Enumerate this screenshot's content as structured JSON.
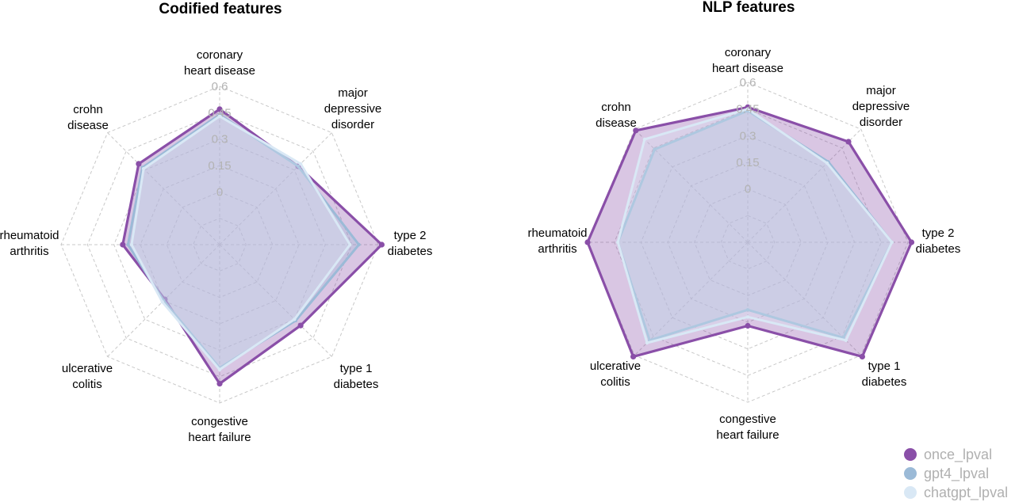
{
  "chart_data": [
    {
      "type": "radar",
      "title": "Codified features",
      "categories": [
        "coronary\nheart disease",
        "major\ndepressive\ndisorder",
        "type 2\ndiabetes",
        "type 1\ndiabetes",
        "congestive\nheart failure",
        "ulcerative\ncolitis",
        "rheumatoid\narthritis",
        "crohn\ndisease"
      ],
      "tick_labels": [
        "0",
        "0.15",
        "0.3",
        "0.45",
        "0.6"
      ],
      "rlim": [
        -0.3,
        0.6
      ],
      "grid": true,
      "series": [
        {
          "name": "once_lpval",
          "values": [
            0.47,
            0.33,
            0.62,
            0.35,
            0.49,
            0.14,
            0.25,
            0.35
          ]
        },
        {
          "name": "gpt4_lpval",
          "values": [
            0.44,
            0.33,
            0.49,
            0.31,
            0.4,
            0.15,
            0.22,
            0.32
          ]
        },
        {
          "name": "chatgpt_lpval",
          "values": [
            0.43,
            0.35,
            0.44,
            0.3,
            0.41,
            0.16,
            0.2,
            0.31
          ]
        }
      ]
    },
    {
      "type": "radar",
      "title": "NLP features",
      "categories": [
        "coronary\nheart disease",
        "major\ndepressive\ndisorder",
        "type 2\ndiabetes",
        "type 1\ndiabetes",
        "congestive\nheart failure",
        "ulcerative\ncolitis",
        "rheumatoid\narthritis",
        "crohn\ndisease"
      ],
      "tick_labels": [
        "0",
        "0.15",
        "0.3",
        "0.45",
        "0.6"
      ],
      "rlim": [
        -0.3,
        0.6
      ],
      "grid": true,
      "series": [
        {
          "name": "once_lpval",
          "values": [
            0.46,
            0.5,
            0.62,
            0.61,
            0.17,
            0.61,
            0.6,
            0.59
          ]
        },
        {
          "name": "gpt4_lpval",
          "values": [
            0.44,
            0.34,
            0.51,
            0.46,
            0.08,
            0.48,
            0.43,
            0.44
          ]
        },
        {
          "name": "chatgpt_lpval",
          "values": [
            0.45,
            0.33,
            0.51,
            0.48,
            0.12,
            0.5,
            0.43,
            0.52
          ]
        }
      ]
    }
  ],
  "legend": {
    "position": "bottom-right",
    "items": [
      {
        "label": "once_lpval",
        "color": "#8a4fa8"
      },
      {
        "label": "gpt4_lpval",
        "color": "#9bbad7"
      },
      {
        "label": "chatgpt_lpval",
        "color": "#d9e8f5"
      }
    ]
  },
  "colors": {
    "once_lpval": "#8a4fa8",
    "gpt4_lpval": "#9bbad7",
    "chatgpt_lpval": "#d9e8f5",
    "grid": "#c8c8c8",
    "tick_text": "#b3b3b3"
  }
}
